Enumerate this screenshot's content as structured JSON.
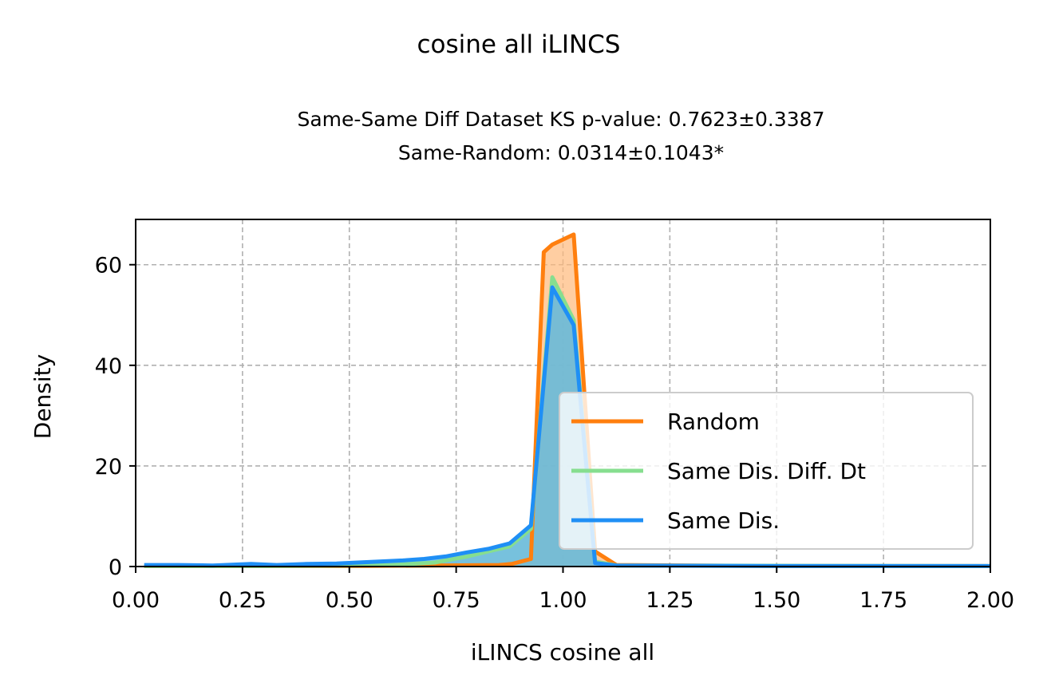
{
  "chart_data": {
    "type": "area",
    "title": "cosine all iLINCS",
    "subtitle_lines": [
      "Same-Same Diff Dataset  KS p-value: 0.7623±0.3387",
      "Same-Random: 0.0314±0.1043*"
    ],
    "xlabel": "iLINCS cosine all",
    "ylabel": "Density",
    "xlim": [
      0,
      2
    ],
    "ylim": [
      0,
      69
    ],
    "xticks": [
      0,
      0.25,
      0.5,
      0.75,
      1.0,
      1.25,
      1.5,
      1.75,
      2.0
    ],
    "xtick_labels": [
      "0.00",
      "0.25",
      "0.50",
      "0.75",
      "1.00",
      "1.25",
      "1.50",
      "1.75",
      "2.00"
    ],
    "yticks": [
      0,
      20,
      40,
      60
    ],
    "ytick_labels": [
      "0",
      "20",
      "40",
      "60"
    ],
    "grid": true,
    "legend_position": "lower-right",
    "series": [
      {
        "name": "Random",
        "color": "#ff7f0e",
        "fill": "#ffb97a",
        "points": [
          [
            0.02,
            0.1
          ],
          [
            0.5,
            0.1
          ],
          [
            0.7,
            0.2
          ],
          [
            0.85,
            0.3
          ],
          [
            0.88,
            0.5
          ],
          [
            0.925,
            1.5
          ],
          [
            0.955,
            62.5
          ],
          [
            0.975,
            64
          ],
          [
            1.025,
            66
          ],
          [
            1.075,
            3
          ],
          [
            1.125,
            0.3
          ],
          [
            1.5,
            0.1
          ],
          [
            2.0,
            0.1
          ]
        ]
      },
      {
        "name": "Same Dis. Diff. Dt",
        "color": "#86de8f",
        "fill": "#9edca8",
        "points": [
          [
            0.02,
            0.1
          ],
          [
            0.3,
            0.1
          ],
          [
            0.5,
            0.2
          ],
          [
            0.6,
            0.3
          ],
          [
            0.7,
            0.8
          ],
          [
            0.775,
            2
          ],
          [
            0.825,
            3
          ],
          [
            0.875,
            4
          ],
          [
            0.925,
            7.5
          ],
          [
            0.975,
            57.5
          ],
          [
            1.025,
            49
          ],
          [
            1.075,
            1
          ],
          [
            1.125,
            0.2
          ],
          [
            2.0,
            0.1
          ]
        ]
      },
      {
        "name": "Same Dis.",
        "color": "#1f8ff5",
        "fill": "#5ab1e8",
        "points": [
          [
            0.02,
            0.3
          ],
          [
            0.1,
            0.3
          ],
          [
            0.18,
            0.2
          ],
          [
            0.27,
            0.5
          ],
          [
            0.33,
            0.3
          ],
          [
            0.4,
            0.5
          ],
          [
            0.47,
            0.6
          ],
          [
            0.55,
            0.9
          ],
          [
            0.625,
            1.2
          ],
          [
            0.675,
            1.5
          ],
          [
            0.725,
            2
          ],
          [
            0.775,
            2.8
          ],
          [
            0.825,
            3.5
          ],
          [
            0.875,
            4.6
          ],
          [
            0.925,
            8.2
          ],
          [
            0.975,
            55.5
          ],
          [
            1.025,
            48
          ],
          [
            1.075,
            0.7
          ],
          [
            1.125,
            0.2
          ],
          [
            1.5,
            0.1
          ],
          [
            2.0,
            0.1
          ]
        ]
      }
    ]
  }
}
